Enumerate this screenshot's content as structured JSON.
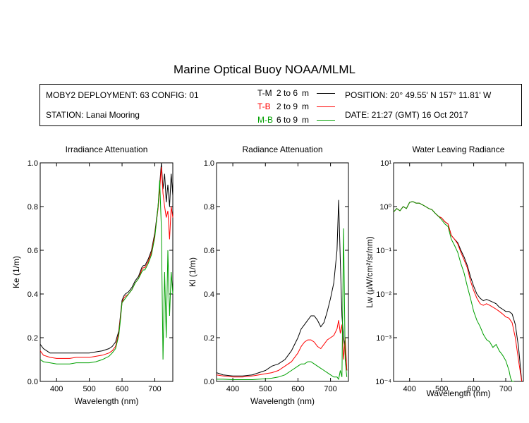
{
  "header": {
    "title": "Marine Optical Buoy NOAA/MLML",
    "deployment": "MOBY2 DEPLOYMENT: 63 CONFIG: 01",
    "station": "STATION: Lanai Mooring",
    "position": "POSITION: 20° 49.55' N   157° 11.81' W",
    "date": "DATE: 21:27 (GMT) 16 Oct 2017"
  },
  "legend": [
    {
      "code": "T-M",
      "range": "2 to 6",
      "unit": "m",
      "color": "#000000"
    },
    {
      "code": "T-B",
      "range": "2 to 9",
      "unit": "m",
      "color": "#ff0000"
    },
    {
      "code": "M-B",
      "range": "6 to 9",
      "unit": "m",
      "color": "#00a000"
    }
  ],
  "chart_data": [
    {
      "type": "line",
      "title": "Irradiance Attenuation",
      "xlabel": "Wavelength (nm)",
      "ylabel": "Ke  (1/m)",
      "xlim": [
        350,
        755
      ],
      "ylim": [
        0,
        1.0
      ],
      "xticks": [
        400,
        500,
        600,
        700
      ],
      "yticks": [
        0.0,
        0.2,
        0.4,
        0.6,
        0.8,
        1.0
      ],
      "yticklabels": [
        "0.0",
        "0.2",
        "0.4",
        "0.6",
        "0.8",
        "1.0"
      ],
      "series": [
        {
          "name": "T-M",
          "color": "#000000",
          "x": [
            350,
            360,
            380,
            400,
            420,
            440,
            460,
            480,
            500,
            520,
            540,
            560,
            570,
            580,
            590,
            595,
            600,
            605,
            610,
            620,
            630,
            640,
            650,
            660,
            665,
            670,
            680,
            690,
            700,
            710,
            715,
            720,
            725,
            730,
            735,
            740,
            745,
            750,
            755
          ],
          "y": [
            0.17,
            0.15,
            0.13,
            0.13,
            0.13,
            0.13,
            0.13,
            0.13,
            0.13,
            0.135,
            0.14,
            0.15,
            0.16,
            0.18,
            0.23,
            0.3,
            0.37,
            0.39,
            0.4,
            0.41,
            0.43,
            0.46,
            0.48,
            0.52,
            0.53,
            0.53,
            0.56,
            0.6,
            0.68,
            0.8,
            0.9,
            1.0,
            0.88,
            0.95,
            0.82,
            0.9,
            0.8,
            0.95,
            0.85
          ]
        },
        {
          "name": "T-B",
          "color": "#ff0000",
          "x": [
            350,
            360,
            380,
            400,
            420,
            440,
            460,
            480,
            500,
            520,
            540,
            560,
            570,
            580,
            590,
            595,
            600,
            605,
            610,
            620,
            630,
            640,
            650,
            660,
            665,
            670,
            680,
            690,
            700,
            710,
            715,
            720,
            725,
            730,
            735,
            740,
            745,
            750,
            755
          ],
          "y": [
            0.14,
            0.12,
            0.11,
            0.105,
            0.105,
            0.105,
            0.11,
            0.11,
            0.11,
            0.115,
            0.12,
            0.13,
            0.14,
            0.16,
            0.22,
            0.29,
            0.36,
            0.38,
            0.39,
            0.4,
            0.42,
            0.45,
            0.47,
            0.51,
            0.52,
            0.52,
            0.55,
            0.59,
            0.67,
            0.79,
            0.88,
            0.98,
            0.86,
            0.8,
            0.75,
            0.78,
            0.65,
            0.8,
            0.75
          ]
        },
        {
          "name": "M-B",
          "color": "#00a000",
          "x": [
            350,
            360,
            380,
            400,
            420,
            440,
            460,
            480,
            500,
            520,
            540,
            560,
            570,
            580,
            590,
            595,
            600,
            605,
            610,
            620,
            630,
            640,
            650,
            660,
            665,
            670,
            680,
            690,
            700,
            710,
            715,
            720,
            725,
            730,
            735,
            740,
            745,
            750,
            755
          ],
          "y": [
            0.1,
            0.09,
            0.085,
            0.08,
            0.08,
            0.08,
            0.085,
            0.085,
            0.085,
            0.09,
            0.1,
            0.115,
            0.13,
            0.15,
            0.21,
            0.28,
            0.36,
            0.37,
            0.38,
            0.4,
            0.42,
            0.45,
            0.47,
            0.5,
            0.51,
            0.51,
            0.54,
            0.58,
            0.66,
            0.8,
            0.92,
            0.7,
            0.1,
            0.5,
            0.2,
            0.6,
            0.3,
            0.5,
            0.4
          ]
        }
      ]
    },
    {
      "type": "line",
      "title": "Radiance Attenuation",
      "xlabel": "Wavelength (nm)",
      "ylabel": "Kl  (1/m)",
      "xlim": [
        350,
        755
      ],
      "ylim": [
        0,
        1.0
      ],
      "xticks": [
        400,
        500,
        600,
        700
      ],
      "yticks": [
        0.0,
        0.2,
        0.4,
        0.6,
        0.8,
        1.0
      ],
      "yticklabels": [
        "0.0",
        "0.2",
        "0.4",
        "0.6",
        "0.8",
        "1.0"
      ],
      "series": [
        {
          "name": "T-M",
          "color": "#000000",
          "x": [
            350,
            370,
            400,
            430,
            460,
            480,
            500,
            520,
            540,
            560,
            580,
            600,
            610,
            620,
            630,
            640,
            650,
            660,
            670,
            680,
            690,
            700,
            710,
            720,
            725,
            730,
            735,
            740,
            745,
            750
          ],
          "y": [
            0.04,
            0.03,
            0.025,
            0.025,
            0.03,
            0.04,
            0.05,
            0.07,
            0.08,
            0.1,
            0.14,
            0.2,
            0.24,
            0.26,
            0.28,
            0.3,
            0.3,
            0.28,
            0.25,
            0.27,
            0.32,
            0.38,
            0.45,
            0.6,
            0.83,
            0.55,
            0.3,
            0.2,
            0.15,
            0.05
          ]
        },
        {
          "name": "T-B",
          "color": "#ff0000",
          "x": [
            350,
            370,
            400,
            430,
            460,
            480,
            500,
            520,
            540,
            560,
            580,
            600,
            610,
            620,
            630,
            640,
            650,
            660,
            670,
            680,
            690,
            700,
            710,
            720,
            725,
            730,
            735,
            740,
            745,
            750
          ],
          "y": [
            0.03,
            0.025,
            0.02,
            0.02,
            0.025,
            0.03,
            0.035,
            0.04,
            0.05,
            0.07,
            0.09,
            0.13,
            0.16,
            0.18,
            0.19,
            0.19,
            0.18,
            0.16,
            0.15,
            0.17,
            0.19,
            0.2,
            0.21,
            0.24,
            0.28,
            0.22,
            0.26,
            0.1,
            0.2,
            0.05
          ]
        },
        {
          "name": "M-B",
          "color": "#00a000",
          "x": [
            350,
            370,
            400,
            430,
            460,
            480,
            500,
            520,
            540,
            560,
            580,
            600,
            610,
            620,
            630,
            640,
            650,
            660,
            670,
            680,
            690,
            700,
            710,
            720,
            725,
            730,
            735,
            740,
            745,
            750
          ],
          "y": [
            0.01,
            0.01,
            0.008,
            0.008,
            0.008,
            0.01,
            0.012,
            0.015,
            0.02,
            0.03,
            0.05,
            0.07,
            0.08,
            0.08,
            0.09,
            0.09,
            0.08,
            0.07,
            0.06,
            0.05,
            0.04,
            0.03,
            0.02,
            0.02,
            0.01,
            0.05,
            0.02,
            0.7,
            0.1,
            0.02
          ]
        }
      ]
    },
    {
      "type": "line",
      "title": "Water Leaving Radiance",
      "xlabel": "Wavelength (nm)",
      "ylabel": "Lw  (µW/cm²/sr/nm)",
      "yscale": "log",
      "xlim": [
        350,
        755
      ],
      "ylim": [
        0.0001,
        10
      ],
      "xticks": [
        400,
        500,
        600,
        700
      ],
      "yticks": [
        10,
        1,
        0.1,
        0.01,
        0.001,
        0.0001
      ],
      "yticklabels": [
        "10¹",
        "10⁰",
        "10⁻¹",
        "10⁻²",
        "10⁻³",
        "10⁻⁴"
      ],
      "series": [
        {
          "name": "T-M",
          "color": "#000000",
          "x": [
            350,
            360,
            370,
            380,
            390,
            400,
            410,
            420,
            430,
            440,
            450,
            460,
            470,
            480,
            490,
            500,
            510,
            520,
            530,
            540,
            550,
            560,
            570,
            580,
            590,
            600,
            610,
            620,
            630,
            640,
            650,
            660,
            670,
            680,
            690,
            700,
            710,
            720,
            730,
            740,
            750
          ],
          "y": [
            0.75,
            0.9,
            0.8,
            1.0,
            0.9,
            1.25,
            1.3,
            1.2,
            1.2,
            1.1,
            1.0,
            0.9,
            0.85,
            0.7,
            0.6,
            0.55,
            0.45,
            0.4,
            0.22,
            0.18,
            0.15,
            0.1,
            0.07,
            0.045,
            0.025,
            0.015,
            0.01,
            0.008,
            0.007,
            0.0075,
            0.007,
            0.0065,
            0.006,
            0.005,
            0.0045,
            0.004,
            0.004,
            0.0035,
            0.002,
            0.0006,
            0.0001
          ]
        },
        {
          "name": "T-B",
          "color": "#ff0000",
          "x": [
            350,
            360,
            370,
            380,
            390,
            400,
            410,
            420,
            430,
            440,
            450,
            460,
            470,
            480,
            490,
            500,
            510,
            520,
            530,
            540,
            550,
            560,
            570,
            580,
            590,
            600,
            610,
            620,
            630,
            640,
            650,
            660,
            670,
            680,
            690,
            700,
            710,
            720,
            730,
            740,
            750
          ],
          "y": [
            0.75,
            0.9,
            0.8,
            1.0,
            0.9,
            1.25,
            1.3,
            1.2,
            1.2,
            1.1,
            1.0,
            0.9,
            0.85,
            0.7,
            0.6,
            0.55,
            0.45,
            0.4,
            0.22,
            0.18,
            0.14,
            0.09,
            0.06,
            0.04,
            0.02,
            0.012,
            0.008,
            0.006,
            0.0055,
            0.006,
            0.0055,
            0.005,
            0.0045,
            0.004,
            0.0035,
            0.003,
            0.0028,
            0.0022,
            0.001,
            0.0003,
            0.0001
          ]
        },
        {
          "name": "M-B",
          "color": "#00a000",
          "x": [
            350,
            360,
            370,
            380,
            390,
            400,
            410,
            420,
            430,
            440,
            450,
            460,
            470,
            480,
            490,
            500,
            510,
            520,
            530,
            540,
            550,
            560,
            570,
            580,
            590,
            600,
            610,
            620,
            630,
            640,
            650,
            660,
            670,
            680,
            690,
            700,
            710,
            715,
            720,
            725
          ],
          "y": [
            0.75,
            0.9,
            0.8,
            1.0,
            0.9,
            1.25,
            1.3,
            1.2,
            1.2,
            1.1,
            1.0,
            0.9,
            0.85,
            0.7,
            0.6,
            0.5,
            0.4,
            0.35,
            0.18,
            0.13,
            0.09,
            0.05,
            0.03,
            0.015,
            0.008,
            0.004,
            0.0025,
            0.0018,
            0.0012,
            0.0009,
            0.0008,
            0.0006,
            0.0007,
            0.0005,
            0.0004,
            0.0003,
            0.00018,
            0.00012,
            0.0001,
            0.0001
          ]
        }
      ]
    }
  ]
}
